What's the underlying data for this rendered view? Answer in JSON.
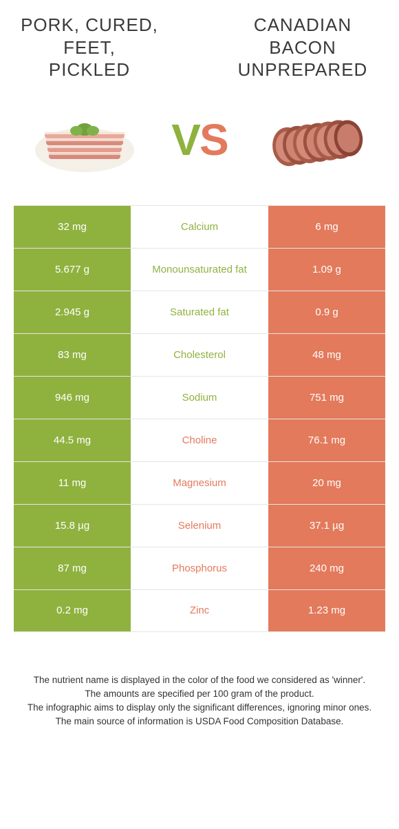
{
  "colors": {
    "left": "#8fb23f",
    "right": "#e37a5c",
    "border": "#e5e5e5",
    "text": "#333333",
    "bg": "#ffffff"
  },
  "left_title": "PORK, CURED, FEET, PICKLED",
  "right_title": "CANADIAN BACON UNPREPARED",
  "vs": {
    "v": "V",
    "s": "S"
  },
  "rows": [
    {
      "left": "32 mg",
      "label": "Calcium",
      "right": "6 mg",
      "winner": "left"
    },
    {
      "left": "5.677 g",
      "label": "Monounsaturated fat",
      "right": "1.09 g",
      "winner": "left"
    },
    {
      "left": "2.945 g",
      "label": "Saturated fat",
      "right": "0.9 g",
      "winner": "left"
    },
    {
      "left": "83 mg",
      "label": "Cholesterol",
      "right": "48 mg",
      "winner": "left"
    },
    {
      "left": "946 mg",
      "label": "Sodium",
      "right": "751 mg",
      "winner": "left"
    },
    {
      "left": "44.5 mg",
      "label": "Choline",
      "right": "76.1 mg",
      "winner": "right"
    },
    {
      "left": "11 mg",
      "label": "Magnesium",
      "right": "20 mg",
      "winner": "right"
    },
    {
      "left": "15.8 µg",
      "label": "Selenium",
      "right": "37.1 µg",
      "winner": "right"
    },
    {
      "left": "87 mg",
      "label": "Phosphorus",
      "right": "240 mg",
      "winner": "right"
    },
    {
      "left": "0.2 mg",
      "label": "Zinc",
      "right": "1.23 mg",
      "winner": "right"
    }
  ],
  "footer": {
    "l1": "The nutrient name is displayed in the color of the food we considered as 'winner'.",
    "l2": "The amounts are specified per 100 gram of the product.",
    "l3": "The infographic aims to display only the significant differences, ignoring minor ones.",
    "l4": "The main source of information is USDA Food Composition Database."
  }
}
